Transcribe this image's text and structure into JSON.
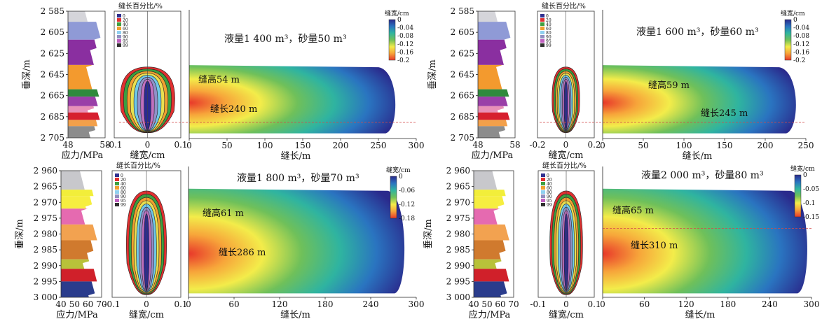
{
  "panels": [
    {
      "id": "a",
      "stress": {
        "ylabel": "垂深/m",
        "xlabel": "应力/MPa",
        "depth_ticks": [
          "2 585",
          "2 605",
          "2 625",
          "2 645",
          "2 665",
          "2 685",
          "2 705"
        ],
        "depth_range": [
          2585,
          2705
        ],
        "stress_ticks": [
          "48",
          "58"
        ],
        "stress_range": [
          48,
          58
        ],
        "layers": [
          {
            "top": 2585,
            "bottom": 2595,
            "color": "#d5d5da"
          },
          {
            "top": 2595,
            "bottom": 2612,
            "color": "#8f9ad6"
          },
          {
            "top": 2612,
            "bottom": 2636,
            "color": "#8a2fa0"
          },
          {
            "top": 2636,
            "bottom": 2659,
            "color": "#f39a2e"
          },
          {
            "top": 2659,
            "bottom": 2666,
            "color": "#2f8a3c"
          },
          {
            "top": 2666,
            "bottom": 2675,
            "color": "#9a3fa8"
          },
          {
            "top": 2675,
            "bottom": 2681,
            "color": "#e890b8"
          },
          {
            "top": 2681,
            "bottom": 2688,
            "color": "#d6202f"
          },
          {
            "top": 2688,
            "bottom": 2694,
            "color": "#f3a04a"
          },
          {
            "top": 2694,
            "bottom": 2705,
            "color": "#8c8c8c"
          }
        ]
      },
      "width_profile": {
        "title": "缝长百分比/%",
        "legend": [
          "0",
          "20",
          "40",
          "60",
          "80",
          "90",
          "95",
          "99"
        ],
        "xticks": [
          "-0.1",
          "0",
          "0.1"
        ],
        "xlabel": "缝宽/cm",
        "xrange": [
          -0.1,
          0.1
        ]
      },
      "fracture": {
        "annotation": "液量1 400 m³，砂量50 m³",
        "height_label": "缝高54 m",
        "length_label": "缝长240 m",
        "xticks": [
          "0",
          "50",
          "100",
          "150",
          "200",
          "250",
          "300"
        ],
        "xrange": [
          0,
          300
        ],
        "xlabel": "缝长/m",
        "colorbar_title": "缝宽/cm",
        "colorbar_ticks": [
          "0",
          "-0.04",
          "-0.08",
          "-0.12",
          "-0.16",
          "-0.2"
        ]
      }
    },
    {
      "id": "b",
      "stress": {
        "ylabel": "垂深/m",
        "xlabel": "应力/MPa",
        "depth_ticks": [
          "2 585",
          "2 605",
          "2 625",
          "2 645",
          "2 665",
          "2 685",
          "2 705"
        ],
        "depth_range": [
          2585,
          2705
        ],
        "stress_ticks": [
          "48",
          "58"
        ],
        "stress_range": [
          48,
          58
        ],
        "layers": [
          {
            "top": 2585,
            "bottom": 2595,
            "color": "#d5d5da"
          },
          {
            "top": 2595,
            "bottom": 2612,
            "color": "#8f9ad6"
          },
          {
            "top": 2612,
            "bottom": 2636,
            "color": "#8a2fa0"
          },
          {
            "top": 2636,
            "bottom": 2659,
            "color": "#f39a2e"
          },
          {
            "top": 2659,
            "bottom": 2666,
            "color": "#2f8a3c"
          },
          {
            "top": 2666,
            "bottom": 2675,
            "color": "#9a3fa8"
          },
          {
            "top": 2675,
            "bottom": 2681,
            "color": "#e890b8"
          },
          {
            "top": 2681,
            "bottom": 2688,
            "color": "#d6202f"
          },
          {
            "top": 2688,
            "bottom": 2694,
            "color": "#f3a04a"
          },
          {
            "top": 2694,
            "bottom": 2705,
            "color": "#8c8c8c"
          }
        ]
      },
      "width_profile": {
        "title": "缝长百分比/%",
        "legend": [
          "0",
          "20",
          "40",
          "60",
          "80",
          "90",
          "95",
          "99"
        ],
        "xticks": [
          "-0.2",
          "0",
          "0.2"
        ],
        "xlabel": "缝宽/cm",
        "xrange": [
          -0.2,
          0.2
        ]
      },
      "fracture": {
        "annotation": "液量1 600 m³，砂量60 m³",
        "height_label": "缝高59 m",
        "length_label": "缝长245 m",
        "xticks": [
          "0",
          "50",
          "100",
          "150",
          "200",
          "250"
        ],
        "xrange": [
          0,
          250
        ],
        "xlabel": "缝长/m",
        "colorbar_title": "缝宽/cm",
        "colorbar_ticks": [
          "0",
          "-0.04",
          "-0.08",
          "-0.12",
          "-0.16",
          "-0.2"
        ]
      }
    },
    {
      "id": "c",
      "stress": {
        "ylabel": "垂深/m",
        "xlabel": "应力/MPa",
        "depth_ticks": [
          "2 960",
          "2 965",
          "2 970",
          "2 975",
          "2 980",
          "2 985",
          "2 990",
          "2 995",
          "3 000"
        ],
        "depth_range": [
          2960,
          3000
        ],
        "stress_ticks": [
          "40",
          "50",
          "60",
          "70"
        ],
        "stress_range": [
          40,
          70
        ],
        "layers": [
          {
            "top": 2960,
            "bottom": 2966,
            "color": "#c8c8cc"
          },
          {
            "top": 2966,
            "bottom": 2968,
            "color": "#f2ee3a"
          },
          {
            "top": 2968,
            "bottom": 2972,
            "color": "#f6ee40"
          },
          {
            "top": 2972,
            "bottom": 2977,
            "color": "#e56ab0"
          },
          {
            "top": 2977,
            "bottom": 2982,
            "color": "#f2a250"
          },
          {
            "top": 2982,
            "bottom": 2988,
            "color": "#d07a2e"
          },
          {
            "top": 2988,
            "bottom": 2991,
            "color": "#b8c23a"
          },
          {
            "top": 2991,
            "bottom": 2995,
            "color": "#d0202a"
          },
          {
            "top": 2995,
            "bottom": 3000,
            "color": "#2a3c8c"
          }
        ]
      },
      "width_profile": {
        "title": "缝长百分比/%",
        "legend": [
          "0",
          "20",
          "40",
          "60",
          "80",
          "90",
          "95",
          "99"
        ],
        "xticks": [
          "-0.1",
          "0",
          "0.1"
        ],
        "xlabel": "缝宽/cm",
        "xrange": [
          -0.1,
          0.1
        ]
      },
      "fracture": {
        "annotation": "液量1 800 m³，砂量70 m³",
        "height_label": "缝高61 m",
        "length_label": "缝长286 m",
        "xticks": [
          "0",
          "60",
          "120",
          "180",
          "240",
          "300"
        ],
        "xrange": [
          0,
          300
        ],
        "xlabel": "缝长/m",
        "colorbar_title": "缝宽/cm",
        "colorbar_ticks": [
          "0",
          "-0.06",
          "-0.12",
          "-0.18"
        ]
      }
    },
    {
      "id": "d",
      "stress": {
        "ylabel": "垂深/m",
        "xlabel": "应力/MPa",
        "depth_ticks": [
          "2 960",
          "2 965",
          "2 970",
          "2 975",
          "2 980",
          "2 985",
          "2 990",
          "2 995",
          "3 000"
        ],
        "depth_range": [
          2960,
          3000
        ],
        "stress_ticks": [
          "40",
          "50",
          "60",
          "70"
        ],
        "stress_range": [
          40,
          70
        ],
        "layers": [
          {
            "top": 2960,
            "bottom": 2966,
            "color": "#c8c8cc"
          },
          {
            "top": 2966,
            "bottom": 2968,
            "color": "#f2ee3a"
          },
          {
            "top": 2968,
            "bottom": 2972,
            "color": "#f6ee40"
          },
          {
            "top": 2972,
            "bottom": 2977,
            "color": "#e56ab0"
          },
          {
            "top": 2977,
            "bottom": 2982,
            "color": "#f2a250"
          },
          {
            "top": 2982,
            "bottom": 2988,
            "color": "#d07a2e"
          },
          {
            "top": 2988,
            "bottom": 2991,
            "color": "#b8c23a"
          },
          {
            "top": 2991,
            "bottom": 2995,
            "color": "#d0202a"
          },
          {
            "top": 2995,
            "bottom": 3000,
            "color": "#2a3c8c"
          }
        ]
      },
      "width_profile": {
        "title": "缝长百分比/%",
        "legend": [
          "0",
          "20",
          "40",
          "60",
          "80",
          "90",
          "95",
          "99"
        ],
        "xticks": [
          "-0.1",
          "0",
          "0.1"
        ],
        "xlabel": "缝宽/cm",
        "xrange": [
          -0.1,
          0.1
        ]
      },
      "fracture": {
        "annotation": "液量2 000 m³，砂量80 m³",
        "height_label": "缝高65 m",
        "length_label": "缝长310 m",
        "xticks": [
          "0",
          "60",
          "120",
          "180",
          "240",
          "300"
        ],
        "xrange": [
          0,
          300
        ],
        "xlabel": "缝长/m",
        "colorbar_title": "缝宽/cm",
        "colorbar_ticks": [
          "0",
          "-0.05",
          "-0.1",
          "-0.15"
        ]
      }
    }
  ],
  "chart_data": [
    {
      "type": "heatmap",
      "title": "液量1 400 m³，砂量50 m³",
      "xlabel": "缝长/m",
      "ylabel": "垂深/m",
      "xlim": [
        0,
        300
      ],
      "ylim": [
        2585,
        2705
      ],
      "fracture_height_m": 54,
      "fracture_length_m": 240,
      "colorbar": {
        "label": "缝宽/cm",
        "range": [
          -0.2,
          0
        ]
      }
    },
    {
      "type": "heatmap",
      "title": "液量1 600 m³，砂量60 m³",
      "xlabel": "缝长/m",
      "ylabel": "垂深/m",
      "xlim": [
        0,
        250
      ],
      "ylim": [
        2585,
        2705
      ],
      "fracture_height_m": 59,
      "fracture_length_m": 245,
      "colorbar": {
        "label": "缝宽/cm",
        "range": [
          -0.2,
          0
        ]
      }
    },
    {
      "type": "heatmap",
      "title": "液量1 800 m³，砂量70 m³",
      "xlabel": "缝长/m",
      "ylabel": "垂深/m",
      "xlim": [
        0,
        300
      ],
      "ylim": [
        2960,
        3000
      ],
      "fracture_height_m": 61,
      "fracture_length_m": 286,
      "colorbar": {
        "label": "缝宽/cm",
        "range": [
          -0.18,
          0
        ]
      }
    },
    {
      "type": "heatmap",
      "title": "液量2 000 m³，砂量80 m³",
      "xlabel": "缝长/m",
      "ylabel": "垂深/m",
      "xlim": [
        0,
        300
      ],
      "ylim": [
        2960,
        3000
      ],
      "fracture_height_m": 65,
      "fracture_length_m": 310,
      "colorbar": {
        "label": "缝宽/cm",
        "range": [
          -0.15,
          0
        ]
      }
    }
  ],
  "colors": {
    "heat_stops": [
      "#e8382a",
      "#f7a53a",
      "#f3ec4a",
      "#6fc05a",
      "#2fb4a0",
      "#2a74c0",
      "#2a2a8c"
    ],
    "legend_swatches": [
      "#303090",
      "#e03030",
      "#40a040",
      "#f0a030",
      "#90d0f0",
      "#9090c0",
      "#c060c0",
      "#303030"
    ],
    "profile_bands": [
      "#e03030",
      "#3aa040",
      "#f0a030",
      "#e8e050",
      "#70c8e8",
      "#9090c8",
      "#c070c0",
      "#2a2a90"
    ]
  }
}
